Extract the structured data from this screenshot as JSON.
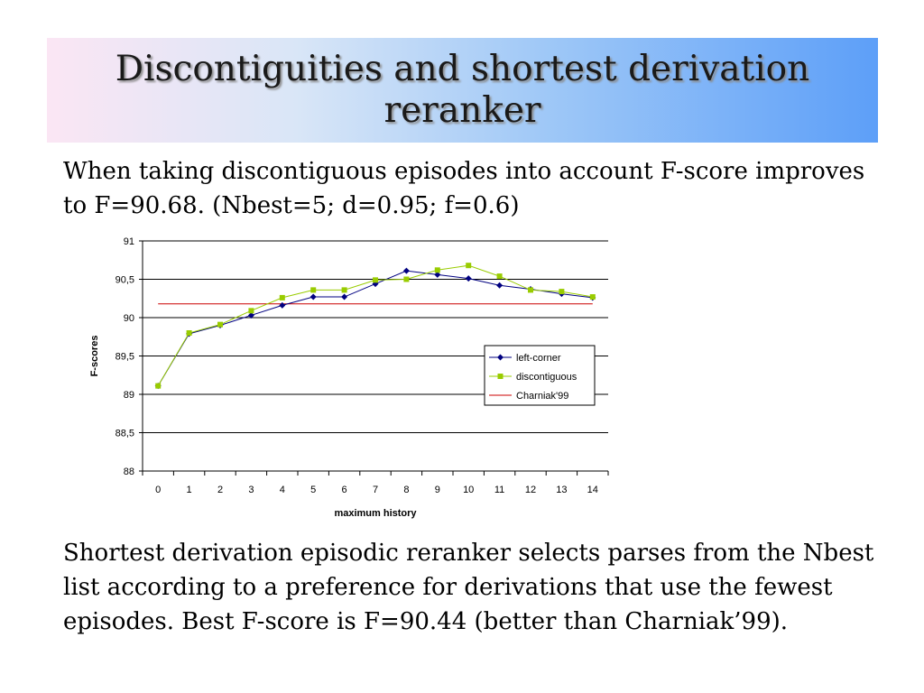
{
  "slide": {
    "title": "Discontiguities and shortest derivation reranker",
    "para1": "When taking discontiguous episodes into account F-score improves to F=90.68. (Nbest=5; d=0.95; f=0.6)",
    "para2": "Shortest derivation episodic reranker selects parses from the Nbest list according to a preference for derivations that use the fewest episodes. Best F-score is F=90.44 (better than Charniak’99)."
  },
  "chart_data": {
    "type": "line",
    "xlabel": "maximum history",
    "ylabel": "F-scores",
    "x": [
      0,
      1,
      2,
      3,
      4,
      5,
      6,
      7,
      8,
      9,
      10,
      11,
      12,
      13,
      14
    ],
    "ylim": [
      88,
      91
    ],
    "y_ticks": [
      "88",
      "88,5",
      "89",
      "89,5",
      "90",
      "90,5",
      "91"
    ],
    "grid": "horizontal",
    "legend_position": "right",
    "series": [
      {
        "name": "left-corner",
        "color": "#000080",
        "marker": "diamond",
        "values": [
          89.11,
          89.79,
          89.9,
          90.03,
          90.16,
          90.27,
          90.27,
          90.44,
          90.61,
          90.56,
          90.51,
          90.42,
          90.37,
          90.31,
          90.26
        ]
      },
      {
        "name": "discontiguous",
        "color": "#99cc00",
        "marker": "square",
        "values": [
          89.11,
          89.8,
          89.91,
          90.09,
          90.26,
          90.36,
          90.36,
          90.49,
          90.5,
          90.62,
          90.68,
          90.54,
          90.36,
          90.34,
          90.27
        ]
      },
      {
        "name": "Charniak'99",
        "color": "#cc0000",
        "marker": "none",
        "values": [
          90.18,
          90.18,
          90.18,
          90.18,
          90.18,
          90.18,
          90.18,
          90.18,
          90.18,
          90.18,
          90.18,
          90.18,
          90.18,
          90.18,
          90.18
        ]
      }
    ]
  }
}
